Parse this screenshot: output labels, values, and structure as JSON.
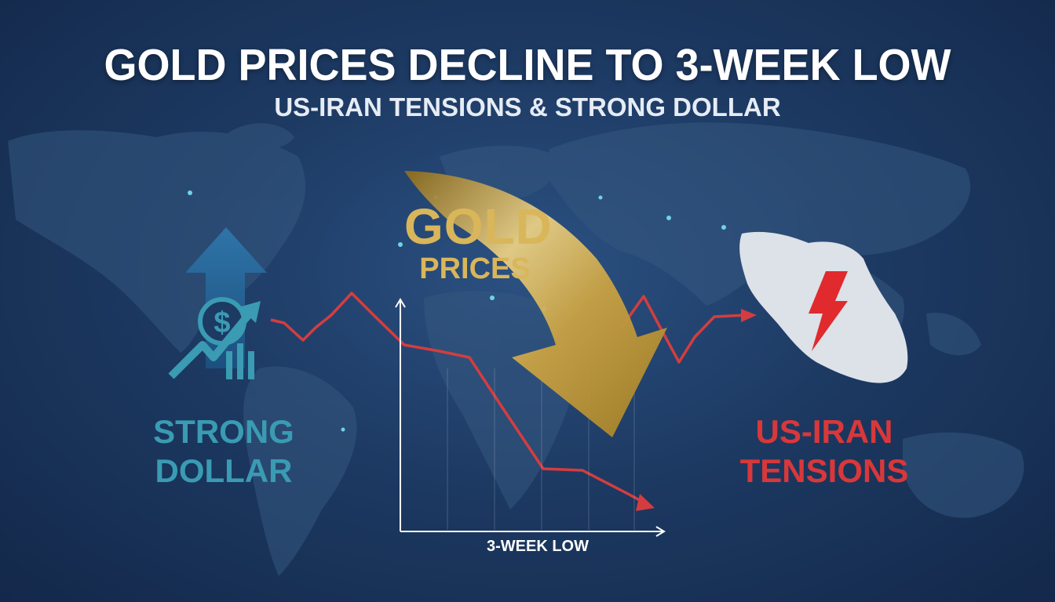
{
  "header": {
    "title": "GOLD PRICES DECLINE TO 3-WEEK LOW",
    "subtitle": "US-IRAN TENSIONS & STRONG DOLLAR"
  },
  "center": {
    "gold_line1": "GOLD",
    "gold_line2": "PRICES",
    "chart_caption": "3-WEEK LOW"
  },
  "left": {
    "label_line1": "STRONG",
    "label_line2": "DOLLAR",
    "symbol": "$",
    "icon": "dollar-up-arrow-icon"
  },
  "right": {
    "label_line1": "US-IRAN",
    "label_line2": "TENSIONS",
    "icon": "iran-map-lightning-icon"
  },
  "colors": {
    "background": "#1d3a63",
    "gold": "#d9b65a",
    "dollar_teal": "#3a9bb3",
    "tension_red": "#d8383a",
    "trend_line": "#d43d3f"
  }
}
